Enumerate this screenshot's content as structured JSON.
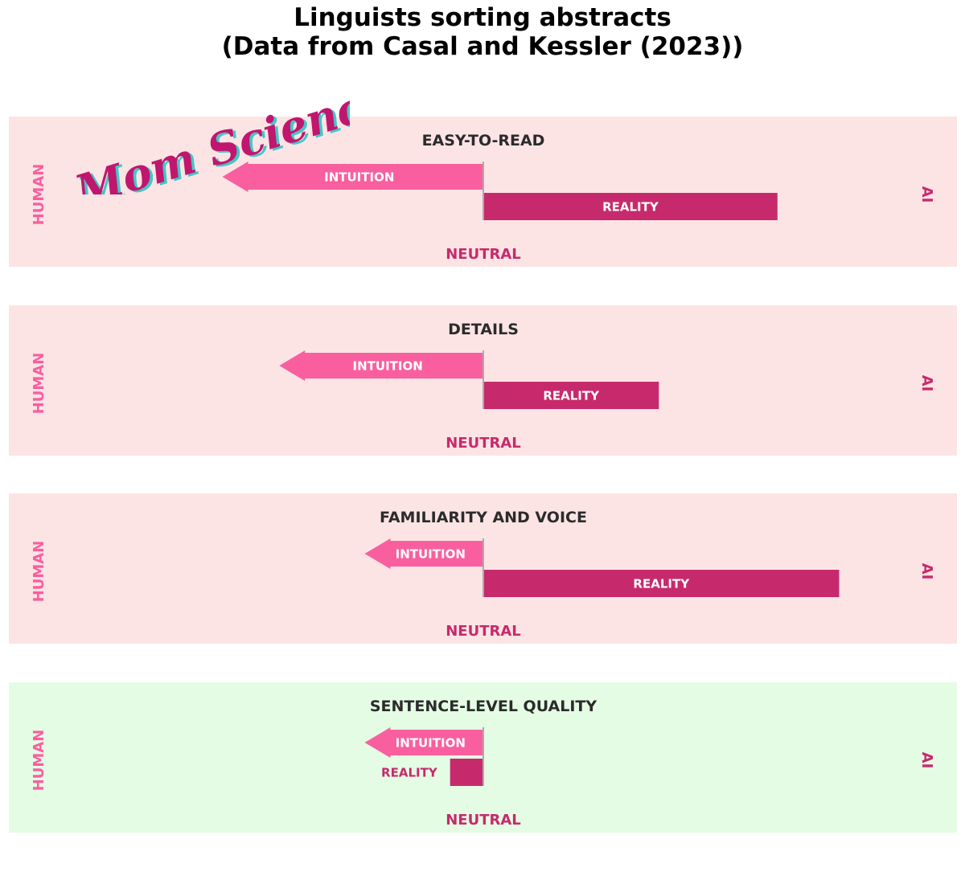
{
  "title_line1": "Linguists sorting abstracts",
  "title_line2": "(Data from Casal and Kessler (2023))",
  "watermark": "Mom Science",
  "colors": {
    "panel_pink": "#fce4e4",
    "panel_green": "#e4fce4",
    "intuition": "#f95f9f",
    "reality": "#c72a6c",
    "human_label": "#f95f9f",
    "ai_label": "#c72a6c",
    "neutral_label": "#c72a6c",
    "panel_title": "#2b2b2b"
  },
  "chart_data": {
    "type": "bar",
    "orientation": "horizontal diverging",
    "axis_left_label": "HUMAN",
    "axis_right_label": "AI",
    "center_label": "NEUTRAL",
    "xlim": [
      -1,
      1
    ],
    "series_labels": [
      "INTUITION",
      "REALITY"
    ],
    "panels": [
      {
        "title": "EASY-TO-READ",
        "background": "pink",
        "intuition": -0.55,
        "reality": 0.62
      },
      {
        "title": "DETAILS",
        "background": "pink",
        "intuition": -0.43,
        "reality": 0.37
      },
      {
        "title": "FAMILIARITY AND VOICE",
        "background": "pink",
        "intuition": -0.25,
        "reality": 0.75
      },
      {
        "title": "SENTENCE-LEVEL QUALITY",
        "background": "green",
        "intuition": -0.25,
        "reality": -0.07
      }
    ]
  }
}
